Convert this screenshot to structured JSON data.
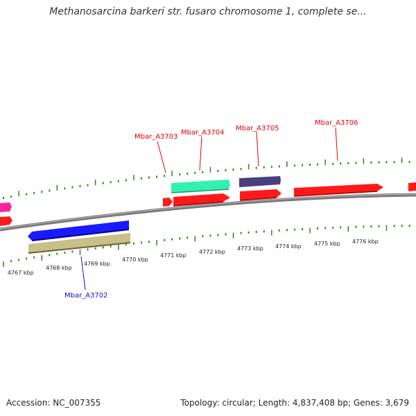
{
  "title": "Methanosarcina barkeri str. fusaro chromosome 1, complete se...",
  "footer": {
    "accession": "Accession: NC_007355",
    "summary": "Topology: circular; Length: 4,837,408 bp; Genes: 3,679"
  },
  "kbp_labels": [
    "4767 kbp",
    "4768 kbp",
    "4769 kbp",
    "4770 kbp",
    "4771 kbp",
    "4772 kbp",
    "4773 kbp",
    "4774 kbp",
    "4775 kbp",
    "4776 kbp"
  ],
  "gene_labels": [
    {
      "name": "Mbar_A3703",
      "strand": "forward",
      "color": "#e00000"
    },
    {
      "name": "Mbar_A3704",
      "strand": "forward",
      "color": "#e00000"
    },
    {
      "name": "Mbar_A3705",
      "strand": "forward",
      "color": "#e00000"
    },
    {
      "name": "Mbar_A3706",
      "strand": "forward",
      "color": "#e00000"
    },
    {
      "name": "Mbar_A3702",
      "strand": "reverse",
      "color": "#1010c0"
    }
  ],
  "colors": {
    "cds_red": "#ff1a1a",
    "gene_blue": "#1a1aff",
    "gene_khaki": "#c8c08a",
    "gene_mint": "#33f0b0",
    "gene_navy": "#48407e",
    "gene_pink": "#ff2299",
    "tick_green": "#228822",
    "backbone": "#777777"
  }
}
